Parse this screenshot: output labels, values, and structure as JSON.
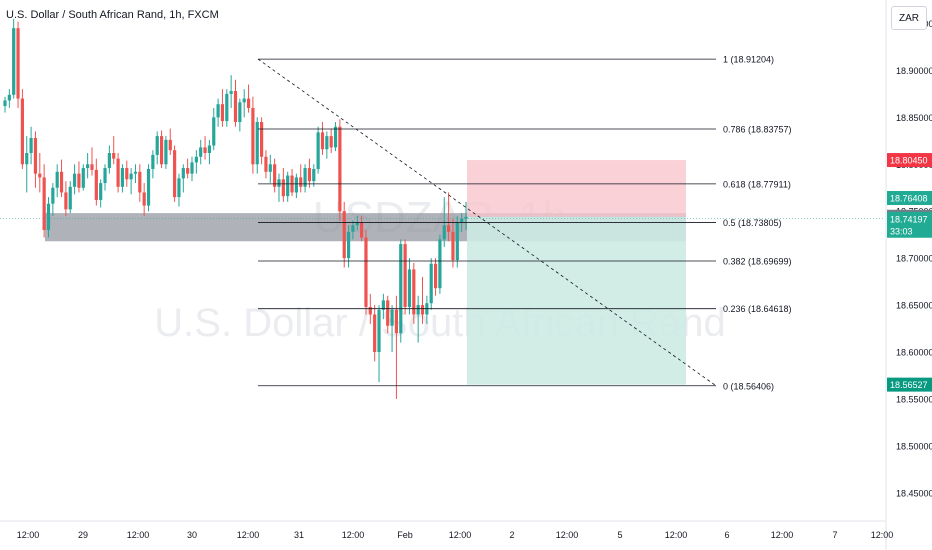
{
  "header": {
    "title": "U.S. Dollar / South African Rand, 1h, FXCM",
    "currency_button": "ZAR"
  },
  "watermark": {
    "line1": "USDZAR, 1h",
    "line2": "U.S. Dollar / South African Rand"
  },
  "colors": {
    "up": "#26a69a",
    "down": "#ef5350",
    "stop_zone": "#f7c6cc",
    "target_zone": "#cdeae3",
    "support_zone": "#9598a1"
  },
  "chart_data": {
    "type": "candlestick",
    "title": "U.S. Dollar / South African Rand, 1h, FXCM",
    "ylim": [
      18.42,
      18.975
    ],
    "y_ticks": [
      "18.95000",
      "18.90000",
      "18.85000",
      "18.80000",
      "18.75000",
      "18.70000",
      "18.65000",
      "18.60000",
      "18.55000",
      "18.50000",
      "18.45000"
    ],
    "x_ticks": [
      "12:00",
      "29",
      "12:00",
      "30",
      "12:00",
      "31",
      "12:00",
      "Feb",
      "12:00",
      "2",
      "12:00",
      "5",
      "12:00",
      "6",
      "12:00",
      "7",
      "12:00"
    ],
    "price_labels": [
      {
        "value": "18.80450",
        "color": "#f23645"
      },
      {
        "value": "18.76408",
        "color": "#22ab94"
      },
      {
        "value": "18.74409",
        "color": "#787b86"
      },
      {
        "value": "18.74197",
        "color": "#22ab94",
        "countdown": "33:03"
      },
      {
        "value": "18.56527",
        "color": "#089981"
      }
    ],
    "fibonacci": {
      "high": 18.91204,
      "low": 18.56406,
      "levels": [
        {
          "ratio": "1",
          "value": 18.91204,
          "label": "1 (18.91204)"
        },
        {
          "ratio": "0.786",
          "value": 18.83757,
          "label": "0.786 (18.83757)"
        },
        {
          "ratio": "0.618",
          "value": 18.77911,
          "label": "0.618 (18.77911)"
        },
        {
          "ratio": "0.5",
          "value": 18.73805,
          "label": "0.5 (18.73805)"
        },
        {
          "ratio": "0.382",
          "value": 18.69699,
          "label": "0.382 (18.69699)"
        },
        {
          "ratio": "0.236",
          "value": 18.64618,
          "label": "0.236 (18.64618)"
        },
        {
          "ratio": "0",
          "value": 18.56406,
          "label": "0 (18.56406)"
        }
      ]
    },
    "short_position": {
      "stop": 18.8045,
      "entry": 18.74409,
      "target": 18.56527
    },
    "support_zone": {
      "top": 18.748,
      "bottom": 18.718
    },
    "candles": [
      [
        18.862,
        18.872,
        18.855,
        18.868
      ],
      [
        18.868,
        18.88,
        18.86,
        18.874
      ],
      [
        18.874,
        18.955,
        18.87,
        18.945
      ],
      [
        18.945,
        18.952,
        18.86,
        18.87
      ],
      [
        18.87,
        18.88,
        18.795,
        18.8
      ],
      [
        18.8,
        18.83,
        18.77,
        18.812
      ],
      [
        18.812,
        18.84,
        18.8,
        18.828
      ],
      [
        18.828,
        18.835,
        18.775,
        18.79
      ],
      [
        18.79,
        18.812,
        18.77,
        18.786
      ],
      [
        18.786,
        18.8,
        18.722,
        18.73
      ],
      [
        18.73,
        18.765,
        18.722,
        18.758
      ],
      [
        18.758,
        18.78,
        18.745,
        18.775
      ],
      [
        18.775,
        18.8,
        18.765,
        18.792
      ],
      [
        18.792,
        18.805,
        18.765,
        18.77
      ],
      [
        18.77,
        18.782,
        18.745,
        18.752
      ],
      [
        18.752,
        18.782,
        18.748,
        18.776
      ],
      [
        18.776,
        18.8,
        18.768,
        18.79
      ],
      [
        18.79,
        18.803,
        18.77,
        18.775
      ],
      [
        18.775,
        18.8,
        18.772,
        18.796
      ],
      [
        18.796,
        18.812,
        18.785,
        18.8
      ],
      [
        18.8,
        18.818,
        18.788,
        18.794
      ],
      [
        18.794,
        18.806,
        18.756,
        18.762
      ],
      [
        18.762,
        18.784,
        18.754,
        18.78
      ],
      [
        18.78,
        18.8,
        18.772,
        18.796
      ],
      [
        18.796,
        18.82,
        18.79,
        18.812
      ],
      [
        18.812,
        18.83,
        18.8,
        18.806
      ],
      [
        18.806,
        18.812,
        18.77,
        18.776
      ],
      [
        18.776,
        18.8,
        18.77,
        18.796
      ],
      [
        18.796,
        18.804,
        18.776,
        18.784
      ],
      [
        18.784,
        18.796,
        18.768,
        18.79
      ],
      [
        18.79,
        18.8,
        18.78,
        18.792
      ],
      [
        18.792,
        18.8,
        18.76,
        18.77
      ],
      [
        18.77,
        18.78,
        18.745,
        18.756
      ],
      [
        18.756,
        18.8,
        18.75,
        18.795
      ],
      [
        18.795,
        18.815,
        18.785,
        18.81
      ],
      [
        18.81,
        18.835,
        18.8,
        18.83
      ],
      [
        18.83,
        18.836,
        18.796,
        18.8
      ],
      [
        18.8,
        18.83,
        18.795,
        18.826
      ],
      [
        18.826,
        18.838,
        18.81,
        18.815
      ],
      [
        18.815,
        18.82,
        18.76,
        18.765
      ],
      [
        18.765,
        18.79,
        18.755,
        18.785
      ],
      [
        18.785,
        18.8,
        18.77,
        18.796
      ],
      [
        18.796,
        18.806,
        18.785,
        18.79
      ],
      [
        18.79,
        18.808,
        18.782,
        18.802
      ],
      [
        18.802,
        18.815,
        18.79,
        18.808
      ],
      [
        18.808,
        18.826,
        18.8,
        18.818
      ],
      [
        18.818,
        18.83,
        18.805,
        18.812
      ],
      [
        18.812,
        18.826,
        18.8,
        18.82
      ],
      [
        18.82,
        18.86,
        18.815,
        18.85
      ],
      [
        18.85,
        18.87,
        18.84,
        18.864
      ],
      [
        18.864,
        18.88,
        18.84,
        18.846
      ],
      [
        18.846,
        18.88,
        18.84,
        18.875
      ],
      [
        18.875,
        18.895,
        18.86,
        18.878
      ],
      [
        18.878,
        18.89,
        18.84,
        18.845
      ],
      [
        18.845,
        18.87,
        18.835,
        18.866
      ],
      [
        18.866,
        18.88,
        18.85,
        18.87
      ],
      [
        18.87,
        18.885,
        18.855,
        18.86
      ],
      [
        18.86,
        18.872,
        18.79,
        18.8
      ],
      [
        18.8,
        18.85,
        18.79,
        18.845
      ],
      [
        18.845,
        18.85,
        18.8,
        18.808
      ],
      [
        18.808,
        18.815,
        18.785,
        18.792
      ],
      [
        18.792,
        18.81,
        18.78,
        18.8
      ],
      [
        18.8,
        18.806,
        18.77,
        18.776
      ],
      [
        18.776,
        18.79,
        18.76,
        18.784
      ],
      [
        18.784,
        18.796,
        18.76,
        18.766
      ],
      [
        18.766,
        18.792,
        18.76,
        18.788
      ],
      [
        18.788,
        18.795,
        18.766,
        18.77
      ],
      [
        18.77,
        18.79,
        18.764,
        18.786
      ],
      [
        18.786,
        18.8,
        18.77,
        18.776
      ],
      [
        18.776,
        18.8,
        18.77,
        18.796
      ],
      [
        18.796,
        18.806,
        18.775,
        18.782
      ],
      [
        18.782,
        18.8,
        18.776,
        18.795
      ],
      [
        18.795,
        18.84,
        18.79,
        18.834
      ],
      [
        18.834,
        18.845,
        18.81,
        18.816
      ],
      [
        18.816,
        18.835,
        18.806,
        18.83
      ],
      [
        18.83,
        18.838,
        18.812,
        18.818
      ],
      [
        18.818,
        18.845,
        18.814,
        18.84
      ],
      [
        18.84,
        18.848,
        18.74,
        18.75
      ],
      [
        18.75,
        18.76,
        18.69,
        18.7
      ],
      [
        18.7,
        18.735,
        18.69,
        18.728
      ],
      [
        18.728,
        18.74,
        18.72,
        18.735
      ],
      [
        18.735,
        18.745,
        18.73,
        18.738
      ],
      [
        18.738,
        18.745,
        18.718,
        18.722
      ],
      [
        18.722,
        18.73,
        18.64,
        18.648
      ],
      [
        18.648,
        18.662,
        18.63,
        18.64
      ],
      [
        18.64,
        18.65,
        18.59,
        18.6
      ],
      [
        18.6,
        18.65,
        18.568,
        18.645
      ],
      [
        18.645,
        18.662,
        18.635,
        18.655
      ],
      [
        18.655,
        18.66,
        18.62,
        18.628
      ],
      [
        18.628,
        18.65,
        18.6,
        18.645
      ],
      [
        18.645,
        18.66,
        18.55,
        18.62
      ],
      [
        18.62,
        18.72,
        18.61,
        18.715
      ],
      [
        18.715,
        18.72,
        18.64,
        18.648
      ],
      [
        18.648,
        18.7,
        18.64,
        18.688
      ],
      [
        18.688,
        18.695,
        18.63,
        18.64
      ],
      [
        18.64,
        18.66,
        18.61,
        18.65
      ],
      [
        18.65,
        18.68,
        18.63,
        18.64
      ],
      [
        18.64,
        18.66,
        18.63,
        18.652
      ],
      [
        18.652,
        18.7,
        18.645,
        18.694
      ],
      [
        18.694,
        18.7,
        18.66,
        18.668
      ],
      [
        18.668,
        18.725,
        18.662,
        18.72
      ],
      [
        18.72,
        18.765,
        18.712,
        18.735
      ],
      [
        18.735,
        18.77,
        18.718,
        18.728
      ],
      [
        18.728,
        18.742,
        18.69,
        18.698
      ],
      [
        18.698,
        18.745,
        18.69,
        18.738
      ],
      [
        18.738,
        18.748,
        18.728,
        18.742
      ],
      [
        18.742,
        18.76,
        18.73,
        18.744
      ]
    ]
  }
}
